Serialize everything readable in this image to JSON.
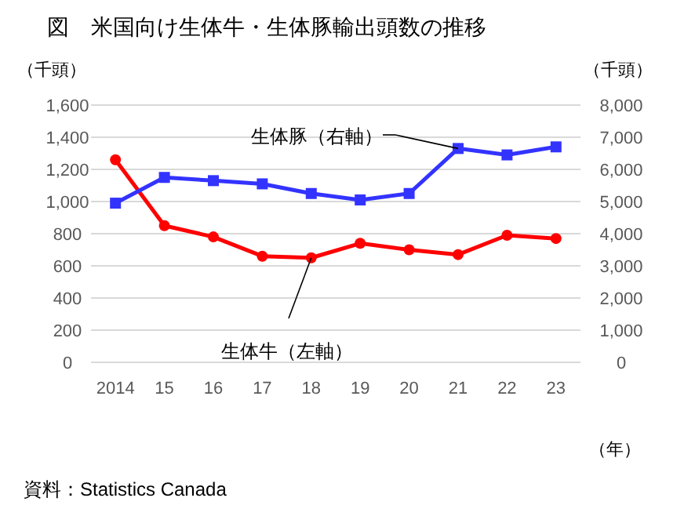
{
  "chart_data": {
    "type": "line",
    "title": "図　米国向け生体牛・生体豚輸出頭数の推移",
    "categories": [
      "2014",
      "15",
      "16",
      "17",
      "18",
      "19",
      "20",
      "21",
      "22",
      "23"
    ],
    "xlabel": "（年）",
    "ylabel": "（千頭）",
    "y2label": "（千頭）",
    "series": [
      {
        "name": "生体牛（左軸）",
        "color": "#ff0000",
        "marker": "circle",
        "values": [
          1260,
          850,
          780,
          660,
          650,
          740,
          700,
          670,
          790,
          770
        ]
      },
      {
        "name": "生体豚（右軸）",
        "color": "#3333ff",
        "marker": "square",
        "axis": "y2",
        "values": [
          4950,
          5750,
          5650,
          5550,
          5250,
          5050,
          5250,
          6650,
          6450,
          6700
        ]
      }
    ],
    "ylim": [
      0,
      1600
    ],
    "yticks": [
      0,
      200,
      400,
      600,
      800,
      {
        "value": 1000,
        "label": "1,000"
      },
      {
        "value": 1200,
        "label": "1,200"
      },
      {
        "value": 1400,
        "label": "1,400"
      },
      {
        "value": 1600,
        "label": "1,600"
      }
    ],
    "y2lim": [
      0,
      8000
    ],
    "y2ticks": [
      0,
      {
        "value": 1000,
        "label": "1,000"
      },
      {
        "value": 2000,
        "label": "2,000"
      },
      {
        "value": 3000,
        "label": "3,000"
      },
      {
        "value": 4000,
        "label": "4,000"
      },
      {
        "value": 5000,
        "label": "5,000"
      },
      {
        "value": 6000,
        "label": "6,000"
      },
      {
        "value": 7000,
        "label": "7,000"
      },
      {
        "value": 8000,
        "label": "8,000"
      }
    ],
    "grid": "y",
    "legend": false,
    "annotations": [
      "資料：Statistics Canada"
    ]
  }
}
